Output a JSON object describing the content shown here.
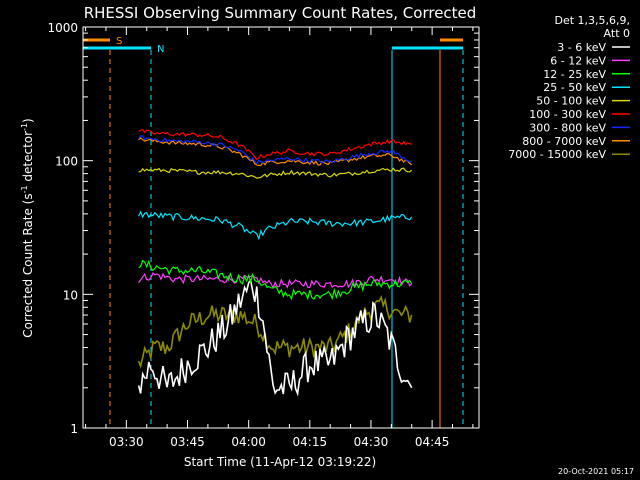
{
  "chart_data": {
    "type": "line",
    "title": "RHESSI Observing Summary Count Rates, Corrected",
    "xlabel": "Start Time (11-Apr-12 03:19:22)",
    "ylabel_main": "Corrected Count Rate (s",
    "ylabel_sup1": "-1",
    "ylabel_mid": " detector",
    "ylabel_sup2": "-1",
    "ylabel_end": ")",
    "yscale": "log",
    "ylim": [
      1,
      1000
    ],
    "xlim": [
      "03:19:22",
      "04:56:30"
    ],
    "x_ticks": [
      "03:30",
      "03:45",
      "04:00",
      "04:15",
      "04:30",
      "04:45"
    ],
    "y_ticks": [
      "1",
      "10",
      "100",
      "1000"
    ],
    "legend_header": [
      "Det 1,3,5,6,9,",
      "Att 0"
    ],
    "footer_date": "20-Oct-2021 05:17",
    "flags": [
      {
        "label": "S",
        "color": "#ff8c00"
      },
      {
        "label": "N",
        "color": "#00e5ff"
      }
    ],
    "series": [
      {
        "name": "3 - 6 keV",
        "color": "#ffffff",
        "points": [
          [
            "03:33",
            2
          ],
          [
            "03:36",
            3
          ],
          [
            "03:40",
            2
          ],
          [
            "03:45",
            3
          ],
          [
            "03:50",
            4
          ],
          [
            "03:55",
            6
          ],
          [
            "03:58",
            9
          ],
          [
            "04:01",
            12
          ],
          [
            "04:03",
            8
          ],
          [
            "04:06",
            2
          ],
          [
            "04:10",
            2
          ],
          [
            "04:15",
            3
          ],
          [
            "04:20",
            3
          ],
          [
            "04:25",
            5
          ],
          [
            "04:28",
            6
          ],
          [
            "04:31",
            7
          ],
          [
            "04:34",
            5
          ],
          [
            "04:37",
            3
          ],
          [
            "04:40",
            2
          ]
        ]
      },
      {
        "name": "6 - 12 keV",
        "color": "#ff3cff",
        "points": [
          [
            "03:33",
            13
          ],
          [
            "03:37",
            14
          ],
          [
            "03:42",
            13
          ],
          [
            "03:48",
            13
          ],
          [
            "03:53",
            13
          ],
          [
            "03:58",
            13
          ],
          [
            "04:02",
            13
          ],
          [
            "04:05",
            12
          ],
          [
            "04:10",
            12
          ],
          [
            "04:15",
            12
          ],
          [
            "04:20",
            12
          ],
          [
            "04:25",
            12
          ],
          [
            "04:30",
            13
          ],
          [
            "04:35",
            13
          ],
          [
            "04:40",
            12
          ]
        ]
      },
      {
        "name": "12 - 25 keV",
        "color": "#00ff00",
        "points": [
          [
            "03:33",
            17
          ],
          [
            "03:37",
            16
          ],
          [
            "03:42",
            15
          ],
          [
            "03:48",
            15
          ],
          [
            "03:53",
            14
          ],
          [
            "03:58",
            13
          ],
          [
            "04:02",
            13
          ],
          [
            "04:05",
            11
          ],
          [
            "04:10",
            10
          ],
          [
            "04:15",
            10
          ],
          [
            "04:20",
            10
          ],
          [
            "04:25",
            11
          ],
          [
            "04:30",
            12
          ],
          [
            "04:35",
            12
          ],
          [
            "04:40",
            12
          ]
        ]
      },
      {
        "name": "25 - 50 keV",
        "color": "#00e5ff",
        "points": [
          [
            "03:33",
            40
          ],
          [
            "03:37",
            39
          ],
          [
            "03:42",
            38
          ],
          [
            "03:48",
            37
          ],
          [
            "03:53",
            36
          ],
          [
            "03:58",
            32
          ],
          [
            "04:02",
            27
          ],
          [
            "04:05",
            31
          ],
          [
            "04:10",
            35
          ],
          [
            "04:15",
            35
          ],
          [
            "04:20",
            34
          ],
          [
            "04:25",
            34
          ],
          [
            "04:30",
            35
          ],
          [
            "04:35",
            37
          ],
          [
            "04:40",
            38
          ]
        ]
      },
      {
        "name": "50 - 100 keV",
        "color": "#d8d800",
        "points": [
          [
            "03:33",
            85
          ],
          [
            "03:37",
            85
          ],
          [
            "03:42",
            84
          ],
          [
            "03:48",
            82
          ],
          [
            "03:53",
            82
          ],
          [
            "03:58",
            80
          ],
          [
            "04:02",
            75
          ],
          [
            "04:05",
            78
          ],
          [
            "04:10",
            82
          ],
          [
            "04:15",
            80
          ],
          [
            "04:20",
            78
          ],
          [
            "04:25",
            80
          ],
          [
            "04:30",
            84
          ],
          [
            "04:35",
            86
          ],
          [
            "04:40",
            85
          ]
        ]
      },
      {
        "name": "100 - 300 keV",
        "color": "#ff0000",
        "points": [
          [
            "03:33",
            168
          ],
          [
            "03:37",
            160
          ],
          [
            "03:42",
            158
          ],
          [
            "03:48",
            156
          ],
          [
            "03:53",
            150
          ],
          [
            "03:58",
            130
          ],
          [
            "04:02",
            105
          ],
          [
            "04:05",
            112
          ],
          [
            "04:10",
            118
          ],
          [
            "04:15",
            113
          ],
          [
            "04:20",
            112
          ],
          [
            "04:25",
            122
          ],
          [
            "04:30",
            133
          ],
          [
            "04:35",
            140
          ],
          [
            "04:40",
            132
          ]
        ]
      },
      {
        "name": "300 - 800 keV",
        "color": "#1428ff",
        "points": [
          [
            "03:33",
            150
          ],
          [
            "03:37",
            145
          ],
          [
            "03:42",
            140
          ],
          [
            "03:48",
            138
          ],
          [
            "03:53",
            132
          ],
          [
            "03:58",
            118
          ],
          [
            "04:02",
            97
          ],
          [
            "04:05",
            100
          ],
          [
            "04:10",
            104
          ],
          [
            "04:15",
            100
          ],
          [
            "04:20",
            98
          ],
          [
            "04:25",
            106
          ],
          [
            "04:30",
            114
          ],
          [
            "04:35",
            118
          ],
          [
            "04:40",
            98
          ]
        ]
      },
      {
        "name": "800 - 7000 keV",
        "color": "#ff8c00",
        "points": [
          [
            "03:33",
            145
          ],
          [
            "03:37",
            140
          ],
          [
            "03:42",
            136
          ],
          [
            "03:48",
            133
          ],
          [
            "03:53",
            127
          ],
          [
            "03:58",
            112
          ],
          [
            "04:02",
            94
          ],
          [
            "04:05",
            97
          ],
          [
            "04:10",
            100
          ],
          [
            "04:15",
            97
          ],
          [
            "04:20",
            95
          ],
          [
            "04:25",
            102
          ],
          [
            "04:30",
            108
          ],
          [
            "04:35",
            110
          ],
          [
            "04:40",
            93
          ]
        ]
      },
      {
        "name": "7000 - 15000 keV",
        "color": "#8b8b00",
        "points": [
          [
            "03:33",
            3
          ],
          [
            "03:37",
            4
          ],
          [
            "03:40",
            4
          ],
          [
            "03:45",
            6
          ],
          [
            "03:50",
            7
          ],
          [
            "03:55",
            7
          ],
          [
            "03:58",
            7
          ],
          [
            "04:02",
            6
          ],
          [
            "04:06",
            4
          ],
          [
            "04:10",
            4
          ],
          [
            "04:15",
            4
          ],
          [
            "04:20",
            4
          ],
          [
            "04:24",
            5
          ],
          [
            "04:28",
            7
          ],
          [
            "04:31",
            8
          ],
          [
            "04:34",
            8
          ],
          [
            "04:37",
            7
          ],
          [
            "04:40",
            7
          ]
        ]
      }
    ]
  }
}
